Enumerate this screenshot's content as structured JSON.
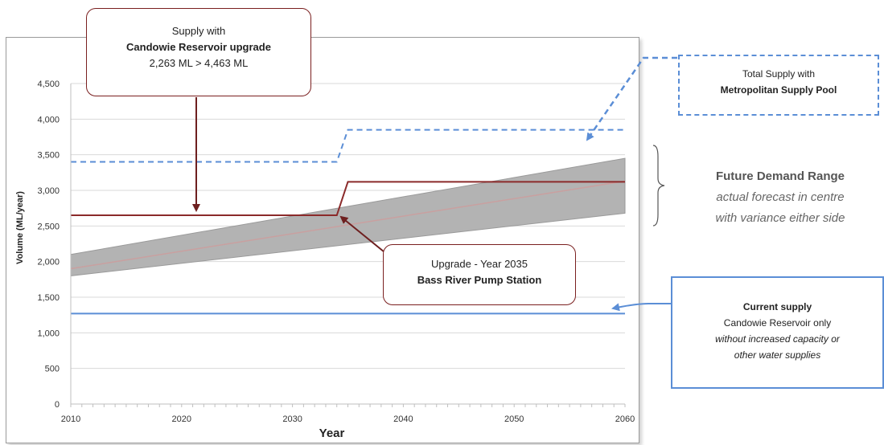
{
  "chart_data": {
    "type": "line",
    "xlabel": "Year",
    "ylabel": "Volume (ML/year)",
    "x_ticks": [
      "2010",
      "2020",
      "2030",
      "2040",
      "2050",
      "2060"
    ],
    "y_ticks": [
      "0",
      "500",
      "1,000",
      "1,500",
      "2,000",
      "2,500",
      "3,000",
      "3,500",
      "4,000",
      "4,500"
    ],
    "xlim": [
      2010,
      2060
    ],
    "ylim": [
      0,
      4500
    ],
    "grid": true,
    "demand_band": {
      "x": [
        2010,
        2060
      ],
      "lower": [
        1800,
        2680
      ],
      "upper": [
        2100,
        3450
      ],
      "mid": [
        1900,
        3130
      ],
      "color": "#b3b3b3"
    },
    "series": [
      {
        "style": "dashed",
        "color": "#5b8ed6",
        "points": [
          [
            2010,
            3400
          ],
          [
            2034,
            3400
          ],
          [
            2035,
            3850
          ],
          [
            2060,
            3850
          ]
        ]
      },
      {
        "style": "solid",
        "color": "#8b2a2a",
        "points": [
          [
            2010,
            2650
          ],
          [
            2034,
            2650
          ],
          [
            2035,
            3120
          ],
          [
            2060,
            3120
          ]
        ]
      },
      {
        "style": "solid",
        "color": "#5b8ed6",
        "points": [
          [
            2010,
            1270
          ],
          [
            2060,
            1270
          ]
        ]
      }
    ],
    "annotations": {
      "reservoir_upgrade": {
        "line1": "Supply with",
        "line2": "Candowie Reservoir upgrade",
        "line3": "2,263 ML > 4,463 ML"
      },
      "pump_station": {
        "line1": "Upgrade - Year 2035",
        "line2": "Bass River Pump Station"
      },
      "metropolitan": {
        "line1": "Total Supply with",
        "line2": "Metropolitan Supply Pool"
      },
      "current_supply": {
        "line1": "Current supply",
        "line2": "Candowie Reservoir only",
        "line3": "without increased capacity or",
        "line4": "other water supplies"
      },
      "demand_range": {
        "line1": "Future Demand Range",
        "line2": "actual forecast in centre",
        "line3": "with variance either side"
      }
    }
  }
}
